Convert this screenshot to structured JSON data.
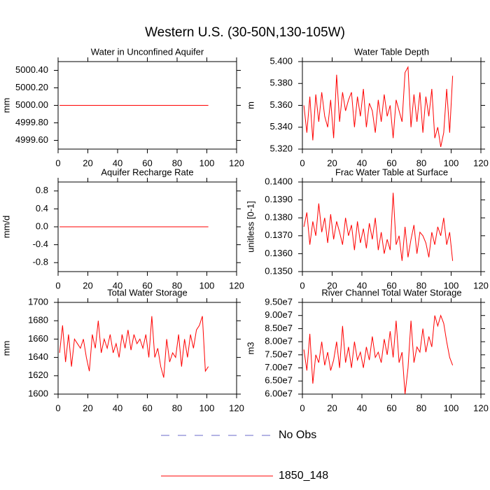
{
  "title": "Western U.S. (30-50N,130-105W)",
  "legend": [
    {
      "name": "No Obs",
      "color": "#6a6ac8",
      "dash": true
    },
    {
      "name": "1850_148",
      "color": "#ff0000",
      "dash": false
    }
  ],
  "chart_data": [
    {
      "type": "line",
      "title": "Water in Unconfined Aquifer",
      "ylabel": "mm",
      "xlim": [
        0,
        120
      ],
      "xticks": [
        0,
        20,
        40,
        60,
        80,
        100,
        120
      ],
      "ylim": [
        4999.5,
        5000.5
      ],
      "yticks": [
        {
          "value": 4999.6,
          "label": "4999.60"
        },
        {
          "value": 4999.8,
          "label": "4999.80"
        },
        {
          "value": 5000,
          "label": "5000.00"
        },
        {
          "value": 5000.2,
          "label": "5000.20"
        },
        {
          "value": 5000.4,
          "label": "5000.40"
        }
      ],
      "x": [
        1,
        101
      ],
      "series": [
        {
          "color": "#ff0000",
          "values": [
            5000,
            5000
          ]
        }
      ]
    },
    {
      "type": "line",
      "title": "Water Table Depth",
      "ylabel": "m",
      "xlim": [
        0,
        120
      ],
      "xticks": [
        0,
        20,
        40,
        60,
        80,
        100,
        120
      ],
      "ylim": [
        5.32,
        5.4
      ],
      "yticks": [
        {
          "value": 5.32,
          "label": "5.320"
        },
        {
          "value": 5.34,
          "label": "5.340"
        },
        {
          "value": 5.36,
          "label": "5.360"
        },
        {
          "value": 5.38,
          "label": "5.380"
        },
        {
          "value": 5.4,
          "label": "5.400"
        }
      ],
      "x": [
        1,
        3,
        5,
        7,
        9,
        11,
        13,
        15,
        17,
        19,
        21,
        23,
        25,
        27,
        29,
        31,
        33,
        35,
        37,
        39,
        41,
        43,
        45,
        47,
        49,
        51,
        53,
        55,
        57,
        59,
        61,
        63,
        65,
        67,
        69,
        71,
        73,
        75,
        77,
        79,
        81,
        83,
        85,
        87,
        89,
        91,
        93,
        95,
        97,
        99,
        101
      ],
      "series": [
        {
          "color": "#ff0000",
          "values": [
            5.36,
            5.335,
            5.368,
            5.328,
            5.37,
            5.345,
            5.372,
            5.35,
            5.34,
            5.365,
            5.33,
            5.388,
            5.345,
            5.372,
            5.355,
            5.365,
            5.372,
            5.34,
            5.368,
            5.35,
            5.375,
            5.34,
            5.362,
            5.355,
            5.335,
            5.365,
            5.345,
            5.37,
            5.35,
            5.36,
            5.33,
            5.365,
            5.355,
            5.345,
            5.39,
            5.395,
            5.34,
            5.37,
            5.345,
            5.372,
            5.335,
            5.368,
            5.35,
            5.375,
            5.33,
            5.34,
            5.322,
            5.335,
            5.375,
            5.335,
            5.387
          ]
        }
      ]
    },
    {
      "type": "line",
      "title": "Aquifer Recharge Rate",
      "ylabel": "mm/d",
      "xlim": [
        0,
        120
      ],
      "xticks": [
        0,
        20,
        40,
        60,
        80,
        100,
        120
      ],
      "ylim": [
        -1,
        1
      ],
      "yticks": [
        -0.8,
        -0.4,
        {
          "value": 0,
          "label": "0.0"
        },
        0.4,
        0.8
      ],
      "x": [
        1,
        101
      ],
      "series": [
        {
          "color": "#ff0000",
          "values": [
            0,
            0
          ]
        }
      ]
    },
    {
      "type": "line",
      "title": "Frac Water Table at Surface",
      "ylabel": "unitless [0-1]",
      "xlim": [
        0,
        120
      ],
      "xticks": [
        0,
        20,
        40,
        60,
        80,
        100,
        120
      ],
      "ylim": [
        0.135,
        0.14
      ],
      "yticks": [
        {
          "value": 0.135,
          "label": "0.1350"
        },
        {
          "value": 0.136,
          "label": "0.1360"
        },
        {
          "value": 0.137,
          "label": "0.1370"
        },
        {
          "value": 0.138,
          "label": "0.1380"
        },
        {
          "value": 0.139,
          "label": "0.1390"
        },
        {
          "value": 0.14,
          "label": "0.1400"
        }
      ],
      "x": [
        1,
        3,
        5,
        7,
        9,
        11,
        13,
        15,
        17,
        19,
        21,
        23,
        25,
        27,
        29,
        31,
        33,
        35,
        37,
        39,
        41,
        43,
        45,
        47,
        49,
        51,
        53,
        55,
        57,
        59,
        61,
        63,
        65,
        67,
        69,
        71,
        73,
        75,
        77,
        79,
        81,
        83,
        85,
        87,
        89,
        91,
        93,
        95,
        97,
        99,
        101
      ],
      "series": [
        {
          "color": "#ff0000",
          "values": [
            0.1375,
            0.1383,
            0.1365,
            0.1378,
            0.137,
            0.1388,
            0.1372,
            0.138,
            0.1366,
            0.1382,
            0.1368,
            0.1378,
            0.1372,
            0.1365,
            0.138,
            0.137,
            0.1376,
            0.1362,
            0.1378,
            0.1366,
            0.1374,
            0.1363,
            0.1377,
            0.1368,
            0.138,
            0.1362,
            0.1372,
            0.136,
            0.1368,
            0.1362,
            0.1394,
            0.1365,
            0.137,
            0.1356,
            0.1375,
            0.1358,
            0.1368,
            0.1376,
            0.136,
            0.1372,
            0.137,
            0.1366,
            0.1358,
            0.1372,
            0.1365,
            0.1375,
            0.137,
            0.138,
            0.1365,
            0.1372,
            0.1356
          ]
        }
      ]
    },
    {
      "type": "line",
      "title": "Total Water Storage",
      "ylabel": "mm",
      "xlim": [
        0,
        120
      ],
      "xticks": [
        0,
        20,
        40,
        60,
        80,
        100,
        120
      ],
      "ylim": [
        1600,
        1700
      ],
      "yticks": [
        1600,
        1620,
        1640,
        1660,
        1680,
        1700
      ],
      "x": [
        1,
        3,
        5,
        7,
        9,
        11,
        13,
        15,
        17,
        19,
        21,
        23,
        25,
        27,
        29,
        31,
        33,
        35,
        37,
        39,
        41,
        43,
        45,
        47,
        49,
        51,
        53,
        55,
        57,
        59,
        61,
        63,
        65,
        67,
        69,
        71,
        73,
        75,
        77,
        79,
        81,
        83,
        85,
        87,
        89,
        91,
        93,
        95,
        97,
        99,
        101
      ],
      "series": [
        {
          "color": "#ff0000",
          "values": [
            1645,
            1675,
            1635,
            1665,
            1630,
            1660,
            1655,
            1650,
            1660,
            1640,
            1625,
            1665,
            1650,
            1680,
            1645,
            1660,
            1650,
            1665,
            1645,
            1655,
            1640,
            1665,
            1650,
            1670,
            1648,
            1665,
            1655,
            1660,
            1650,
            1665,
            1640,
            1685,
            1640,
            1650,
            1630,
            1618,
            1660,
            1635,
            1645,
            1640,
            1665,
            1630,
            1660,
            1640,
            1665,
            1650,
            1670,
            1675,
            1685,
            1625,
            1630
          ]
        }
      ]
    },
    {
      "type": "line",
      "title": "River Channel Total Water Storage",
      "ylabel": "m3",
      "xlim": [
        0,
        120
      ],
      "xticks": [
        0,
        20,
        40,
        60,
        80,
        100,
        120
      ],
      "ylim": [
        60000000,
        95000000
      ],
      "yticks": [
        {
          "value": 60000000,
          "label": "6.00e7"
        },
        {
          "value": 65000000,
          "label": "6.50e7"
        },
        {
          "value": 70000000,
          "label": "7.00e7"
        },
        {
          "value": 75000000,
          "label": "7.50e7"
        },
        {
          "value": 80000000,
          "label": "8.00e7"
        },
        {
          "value": 85000000,
          "label": "8.50e7"
        },
        {
          "value": 90000000,
          "label": "9.00e7"
        },
        {
          "value": 95000000,
          "label": "9.50e7"
        }
      ],
      "x": [
        1,
        3,
        5,
        7,
        9,
        11,
        13,
        15,
        17,
        19,
        21,
        23,
        25,
        27,
        29,
        31,
        33,
        35,
        37,
        39,
        41,
        43,
        45,
        47,
        49,
        51,
        53,
        55,
        57,
        59,
        61,
        63,
        65,
        67,
        69,
        71,
        73,
        75,
        77,
        79,
        81,
        83,
        85,
        87,
        89,
        91,
        93,
        95,
        97,
        99,
        101
      ],
      "series": [
        {
          "color": "#ff0000",
          "values": [
            77000000,
            69000000,
            83000000,
            64000000,
            75000000,
            72000000,
            80000000,
            71000000,
            76000000,
            69000000,
            73000000,
            80000000,
            70000000,
            86000000,
            72000000,
            78000000,
            70000000,
            80000000,
            73000000,
            76000000,
            70000000,
            78000000,
            73000000,
            82000000,
            74000000,
            76000000,
            72000000,
            81000000,
            75000000,
            84000000,
            74000000,
            88000000,
            72000000,
            76000000,
            60000000,
            70000000,
            88000000,
            72000000,
            78000000,
            76000000,
            85000000,
            76000000,
            82000000,
            78000000,
            90000000,
            86000000,
            90000000,
            87000000,
            80000000,
            74000000,
            71000000
          ]
        }
      ]
    }
  ]
}
